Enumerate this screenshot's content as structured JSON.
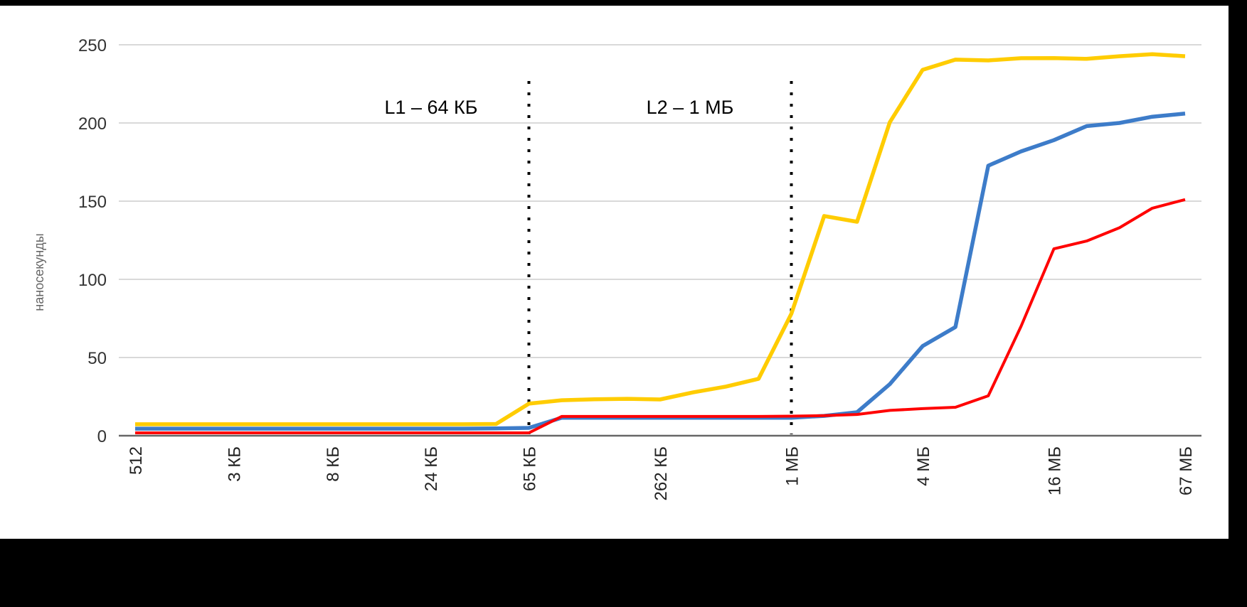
{
  "chart_data": {
    "type": "line",
    "title": "",
    "xlabel": "",
    "ylabel": "наносекунды",
    "ylim": [
      0,
      250
    ],
    "yticks": [
      0,
      50,
      100,
      150,
      200,
      250
    ],
    "grid": true,
    "legend": null,
    "x_tick_labels": [
      "512",
      "",
      "",
      "3 КБ",
      "",
      "",
      "8 КБ",
      "",
      "",
      "24 КБ",
      "",
      "",
      "65 КБ",
      "",
      "",
      "",
      "262 КБ",
      "",
      "",
      "",
      "1 МБ",
      "",
      "",
      "",
      "4 МБ",
      "",
      "",
      "",
      "16 МБ",
      "",
      "",
      "",
      "67 МБ"
    ],
    "series": [
      {
        "name": "yellow",
        "color": "#FFCC00",
        "values": [
          7.3,
          7.3,
          7.3,
          7.3,
          7.3,
          7.3,
          7.3,
          7.3,
          7.3,
          7.3,
          7.3,
          7.5,
          20.5,
          22.7,
          23.3,
          23.6,
          23.2,
          27.7,
          31.4,
          36.4,
          78,
          140.5,
          136.8,
          200.5,
          234,
          240.5,
          240,
          241.4,
          241.5,
          241,
          242.7,
          244,
          242.7
        ]
      },
      {
        "name": "blue",
        "color": "#3D7CC9",
        "values": [
          4.5,
          4.5,
          4.5,
          4.5,
          4.5,
          4.5,
          4.5,
          4.5,
          4.5,
          4.5,
          4.5,
          4.7,
          5,
          11.5,
          11.5,
          11.5,
          11.5,
          11.5,
          11.5,
          11.5,
          11.5,
          12.7,
          15,
          33,
          57.3,
          69.5,
          172.7,
          181.8,
          189,
          198,
          200,
          204,
          206
        ]
      },
      {
        "name": "red",
        "color": "#FF0000",
        "values": [
          1.8,
          1.8,
          1.8,
          1.8,
          1.8,
          1.8,
          1.8,
          1.8,
          1.8,
          1.8,
          1.8,
          1.8,
          1.8,
          12.3,
          12.3,
          12.3,
          12.3,
          12.3,
          12.3,
          12.3,
          12.5,
          12.8,
          13.6,
          16.2,
          17.3,
          18.2,
          25.5,
          70,
          119.5,
          124.5,
          133,
          145.5,
          151
        ]
      }
    ],
    "annotations": [
      {
        "text": "L1 – 64 КБ",
        "at_index": 12,
        "style": "dotted-vertical-line"
      },
      {
        "text": "L2 – 1 МБ",
        "at_index": 20,
        "style": "dotted-vertical-line"
      }
    ]
  }
}
